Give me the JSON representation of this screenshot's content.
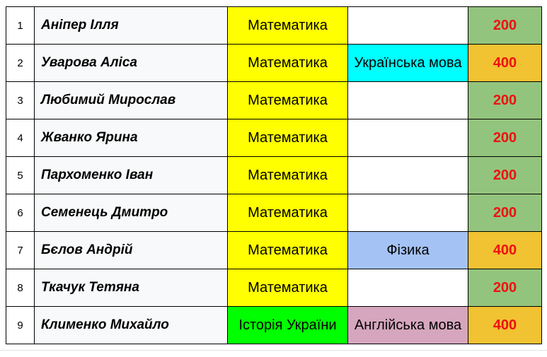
{
  "colors": {
    "math": "#ffff00",
    "ukr_lang": "#00ffff",
    "physics": "#a4c2f4",
    "history": "#00ff00",
    "english": "#d5a6bd",
    "score_200": "#93c47d",
    "score_400": "#f1c232",
    "empty": "#ffffff"
  },
  "rows": [
    {
      "num": "1",
      "name": "Аніпер Ілля",
      "subject1": "Математика",
      "subject1_color": "#ffff00",
      "subject2": "",
      "subject2_color": "#ffffff",
      "score": "200",
      "score_color": "#93c47d"
    },
    {
      "num": "2",
      "name": "Уварова  Аліса",
      "subject1": "Математика",
      "subject1_color": "#ffff00",
      "subject2": "Українська мова",
      "subject2_color": "#00ffff",
      "score": "400",
      "score_color": "#f1c232"
    },
    {
      "num": "3",
      "name": "Любимий Мирослав",
      "subject1": "Математика",
      "subject1_color": "#ffff00",
      "subject2": "",
      "subject2_color": "#ffffff",
      "score": "200",
      "score_color": "#93c47d"
    },
    {
      "num": "4",
      "name": "Жванко  Ярина",
      "subject1": "Математика",
      "subject1_color": "#ffff00",
      "subject2": "",
      "subject2_color": "#ffffff",
      "score": "200",
      "score_color": "#93c47d"
    },
    {
      "num": "5",
      "name": "Пархоменко  Іван",
      "subject1": "Математика",
      "subject1_color": "#ffff00",
      "subject2": "",
      "subject2_color": "#ffffff",
      "score": "200",
      "score_color": "#93c47d"
    },
    {
      "num": "6",
      "name": "Семенець Дмитро",
      "subject1": "Математика",
      "subject1_color": "#ffff00",
      "subject2": "",
      "subject2_color": "#ffffff",
      "score": "200",
      "score_color": "#93c47d"
    },
    {
      "num": "7",
      "name": "Бєлов Андрій",
      "subject1": "Математика",
      "subject1_color": "#ffff00",
      "subject2": "Фізика",
      "subject2_color": "#a4c2f4",
      "score": "400",
      "score_color": "#f1c232"
    },
    {
      "num": "8",
      "name": "Ткачук Тетяна",
      "subject1": "Математика",
      "subject1_color": "#ffff00",
      "subject2": "",
      "subject2_color": "#ffffff",
      "score": "200",
      "score_color": "#93c47d"
    },
    {
      "num": "9",
      "name": "Клименко  Михайло",
      "subject1": "Історія України",
      "subject1_color": "#00ff00",
      "subject2": "Англійська мова",
      "subject2_color": "#d5a6bd",
      "score": "400",
      "score_color": "#f1c232"
    }
  ]
}
